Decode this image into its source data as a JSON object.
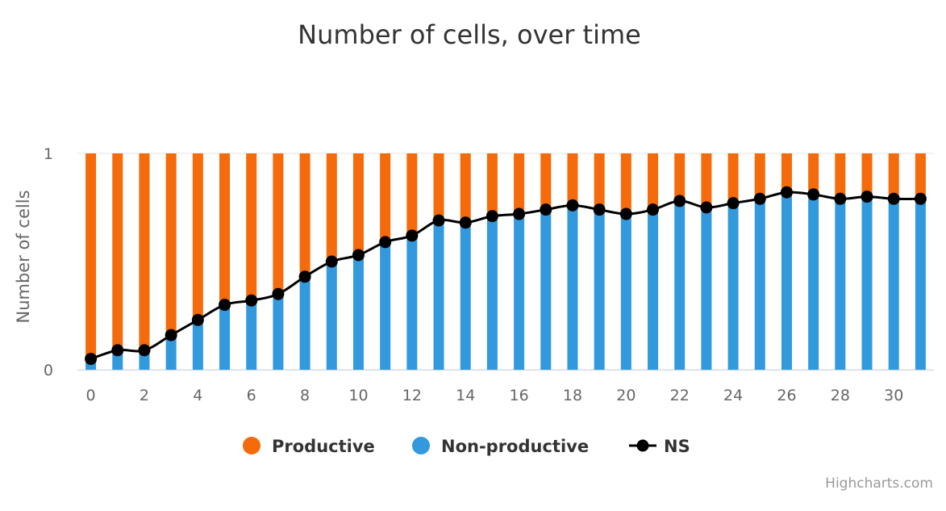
{
  "chart_data": {
    "type": "bar",
    "stacked": true,
    "title": "Number of cells, over time",
    "xlabel": "",
    "ylabel": "Number of cells",
    "ylim": [
      0,
      1
    ],
    "yticks": [
      "0",
      "1"
    ],
    "xticks": [
      "0",
      "2",
      "4",
      "6",
      "8",
      "10",
      "12",
      "14",
      "16",
      "18",
      "20",
      "22",
      "24",
      "26",
      "28",
      "30"
    ],
    "x": [
      0,
      1,
      2,
      3,
      4,
      5,
      6,
      7,
      8,
      9,
      10,
      11,
      12,
      13,
      14,
      15,
      16,
      17,
      18,
      19,
      20,
      21,
      22,
      23,
      24,
      25,
      26,
      27,
      28,
      29,
      30,
      31
    ],
    "series": [
      {
        "name": "Productive",
        "type": "bar",
        "color": "#f56a0a",
        "values": [
          0.95,
          0.91,
          0.91,
          0.84,
          0.77,
          0.7,
          0.68,
          0.65,
          0.57,
          0.5,
          0.47,
          0.41,
          0.38,
          0.31,
          0.32,
          0.29,
          0.28,
          0.26,
          0.24,
          0.26,
          0.28,
          0.26,
          0.22,
          0.25,
          0.23,
          0.21,
          0.18,
          0.19,
          0.21,
          0.2,
          0.21,
          0.21
        ]
      },
      {
        "name": "Non-productive",
        "type": "bar",
        "color": "#3399dd",
        "values": [
          0.05,
          0.09,
          0.09,
          0.16,
          0.23,
          0.3,
          0.32,
          0.35,
          0.43,
          0.5,
          0.53,
          0.59,
          0.62,
          0.69,
          0.68,
          0.71,
          0.72,
          0.74,
          0.76,
          0.74,
          0.72,
          0.74,
          0.78,
          0.75,
          0.77,
          0.79,
          0.82,
          0.81,
          0.79,
          0.8,
          0.79,
          0.79
        ]
      },
      {
        "name": "NS",
        "type": "line",
        "color": "#000000",
        "values": [
          0.05,
          0.09,
          0.09,
          0.16,
          0.23,
          0.3,
          0.32,
          0.35,
          0.43,
          0.5,
          0.53,
          0.59,
          0.62,
          0.69,
          0.68,
          0.71,
          0.72,
          0.74,
          0.76,
          0.74,
          0.72,
          0.74,
          0.78,
          0.75,
          0.77,
          0.79,
          0.82,
          0.81,
          0.79,
          0.8,
          0.79,
          0.79
        ]
      }
    ],
    "legend_position": "bottom",
    "credits": "Highcharts.com"
  }
}
